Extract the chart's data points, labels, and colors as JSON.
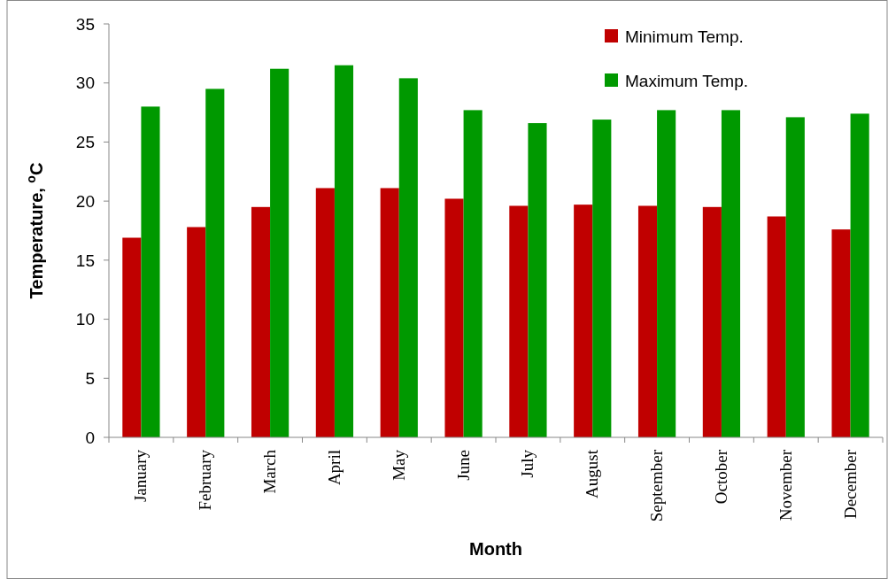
{
  "chart_data": {
    "type": "bar",
    "xlabel": "Month",
    "ylabel": "Temperature, $^{o}$C",
    "categories": [
      "January",
      "February",
      "March",
      "April",
      "May",
      "June",
      "July",
      "August",
      "September",
      "October",
      "November",
      "December"
    ],
    "series": [
      {
        "name": "Minimum Temp.",
        "color": "#c00000",
        "values": [
          16.9,
          17.8,
          19.5,
          21.1,
          21.1,
          20.2,
          19.6,
          19.7,
          19.6,
          19.5,
          18.7,
          17.6
        ]
      },
      {
        "name": "Maximum Temp.",
        "color": "#009900",
        "values": [
          28.0,
          29.5,
          31.2,
          31.5,
          30.4,
          27.7,
          26.6,
          26.9,
          27.7,
          27.7,
          27.1,
          27.4
        ]
      }
    ],
    "ylim": [
      0,
      35
    ],
    "yticks": [
      0,
      5,
      10,
      15,
      20,
      25,
      30,
      35
    ],
    "grid": false,
    "legend": "top right"
  }
}
